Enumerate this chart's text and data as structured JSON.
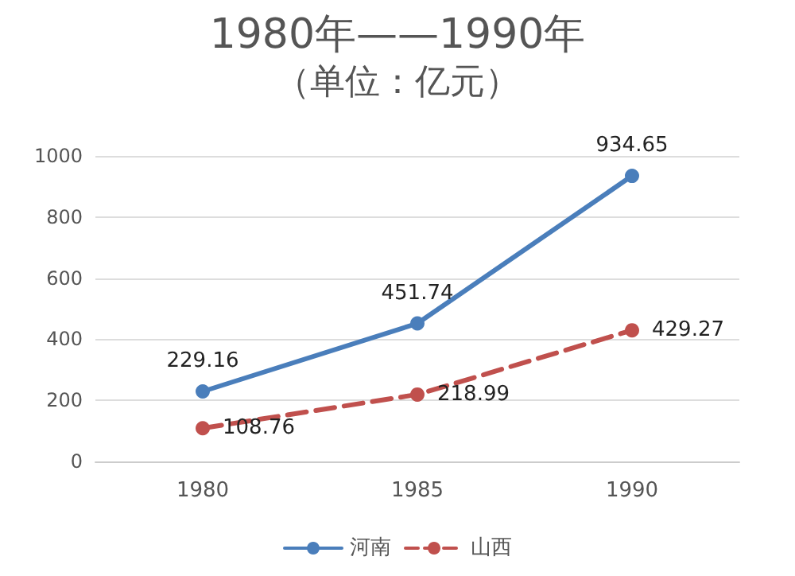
{
  "chart_data": {
    "type": "line",
    "title": "1980年——1990年",
    "subtitle": "（单位：亿元）",
    "categories": [
      "1980",
      "1985",
      "1990"
    ],
    "series": [
      {
        "name": "河南",
        "color": "#4a7ebb",
        "values": [
          229.16,
          451.74,
          934.65
        ],
        "line_style": "solid"
      },
      {
        "name": "山西",
        "color": "#c0504d",
        "values": [
          108.76,
          218.99,
          429.27
        ],
        "line_style": "dashed"
      }
    ],
    "ylim": [
      0,
      1000
    ],
    "yticks": [
      0,
      200,
      400,
      600,
      800,
      1000
    ],
    "grid": "y",
    "legend": "bottom",
    "marker": "circle",
    "data_labels": true
  }
}
